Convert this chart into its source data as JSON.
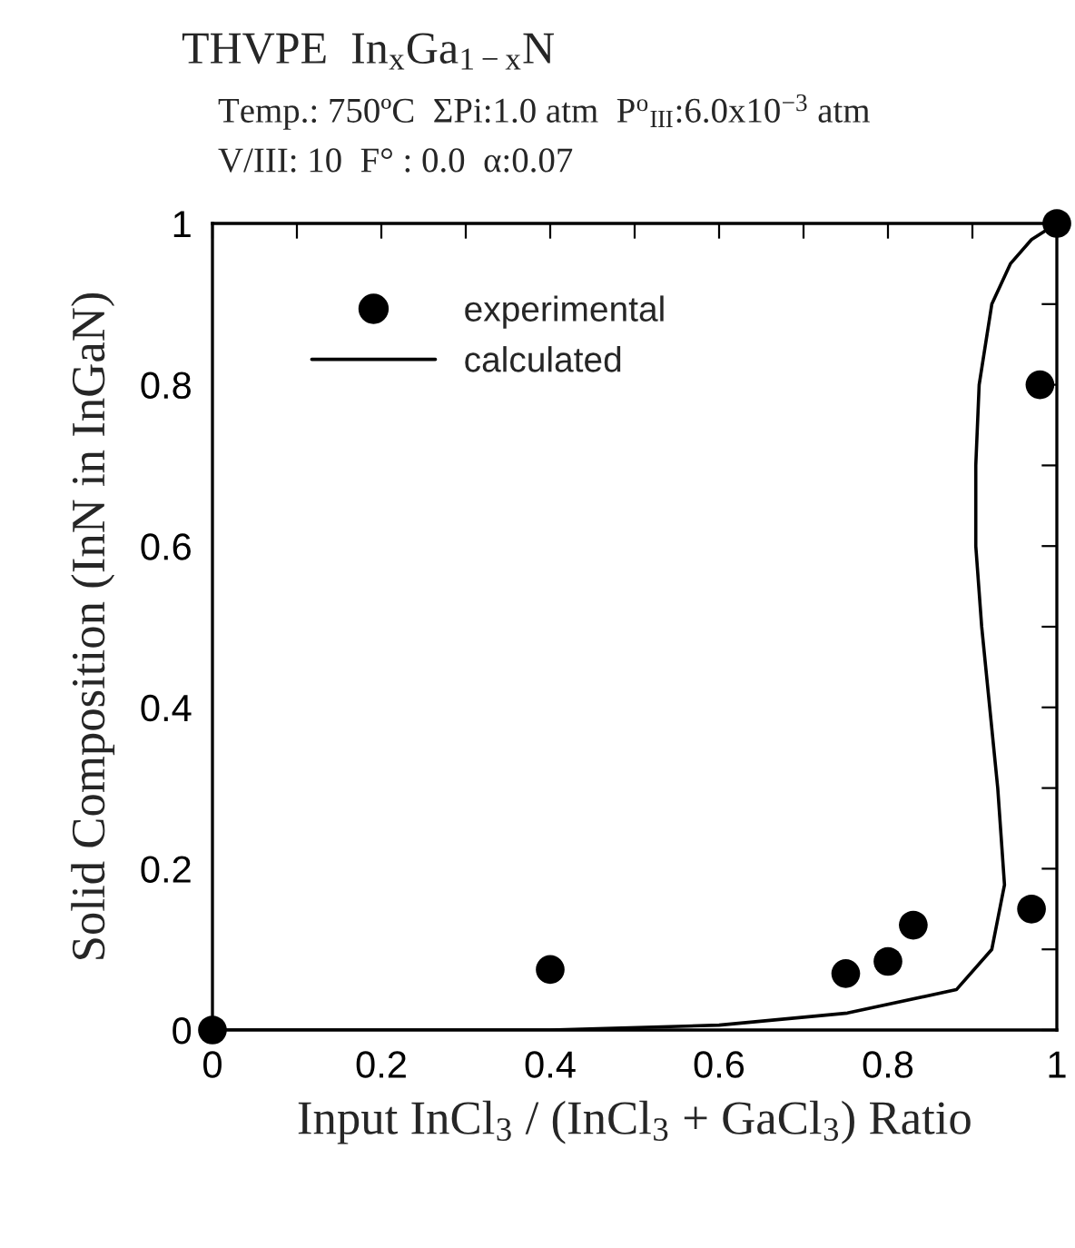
{
  "chart_data": {
    "type": "scatter",
    "title": "THVPE  In$_{x}$Ga$_{1−x}$N",
    "subtitle": "Temp.: 750ºC  ΣPi:1.0 atm  P$^{o}$$_{III}$:6.0x10$^{−3}$ atm\nV/III: 10  F° : 0.0  α:0.07",
    "xlabel": "Input InCl$_{3}$ / (InCl$_{3}$ + GaCl$_{3}$) Ratio",
    "ylabel": "Solid Composition (InN in InGaN)",
    "series": [
      {
        "name": "experimental",
        "color": "#000000",
        "marker": "circle",
        "x": [
          0,
          0.4,
          0.75,
          0.8,
          0.83,
          0.97,
          0.98,
          1
        ],
        "values": [
          0,
          0.075,
          0.07,
          0.085,
          0.13,
          0.15,
          0.8,
          1
        ]
      },
      {
        "name": "calculated",
        "type": "line",
        "color": "#000000",
        "line_style": "solid",
        "marker": "none",
        "x": [
          0,
          0.4,
          0.6,
          0.752,
          0.881,
          0.923,
          0.938,
          0.93,
          0.911,
          0.904,
          0.904,
          0.908,
          0.923,
          0.945,
          0.97,
          1
        ],
        "values": [
          0,
          0,
          0.006,
          0.021,
          0.05,
          0.1,
          0.18,
          0.3,
          0.5,
          0.6,
          0.7,
          0.8,
          0.9,
          0.95,
          0.98,
          1
        ]
      }
    ],
    "xlim": [
      0,
      1
    ],
    "ylim": [
      0,
      1
    ],
    "xticks": [
      0,
      {
        "value": 0.1,
        "label": null
      },
      {
        "value": 0.2,
        "label": "0.2"
      },
      {
        "value": 0.3,
        "label": null
      },
      {
        "value": 0.4,
        "label": "0.4"
      },
      {
        "value": 0.5,
        "label": null
      },
      {
        "value": 0.6,
        "label": "0.6"
      },
      {
        "value": 0.7,
        "label": null
      },
      {
        "value": 0.8,
        "label": "0.8"
      },
      {
        "value": 0.9,
        "label": null
      },
      1
    ],
    "yticks": [
      0,
      {
        "value": 0.1,
        "label": null
      },
      {
        "value": 0.2,
        "label": "0.2"
      },
      {
        "value": 0.3,
        "label": null
      },
      {
        "value": 0.4,
        "label": "0.4"
      },
      {
        "value": 0.5,
        "label": null
      },
      {
        "value": 0.6,
        "label": "0.6"
      },
      {
        "value": 0.7,
        "label": null
      },
      {
        "value": 0.8,
        "label": "0.8"
      },
      {
        "value": 0.9,
        "label": null
      },
      1
    ],
    "grid": false,
    "legend": "top left"
  }
}
